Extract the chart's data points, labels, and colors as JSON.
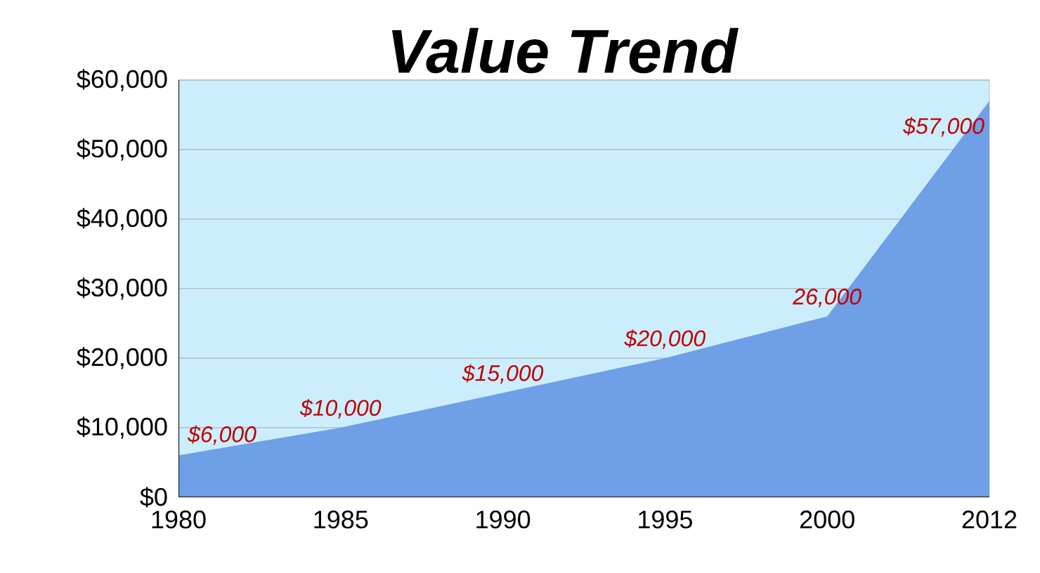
{
  "chart_data": {
    "type": "area",
    "title": "Value Trend",
    "categories": [
      "1980",
      "1985",
      "1990",
      "1995",
      "2000",
      "2012"
    ],
    "values": [
      6000,
      10000,
      15000,
      20000,
      26000,
      57000
    ],
    "value_labels": [
      "$6,000",
      "$10,000",
      "$15,000",
      "$20,000",
      "26,000",
      "$57,000"
    ],
    "color": "#6f9fe6",
    "ylim": [
      0,
      60000
    ],
    "yticks": [
      {
        "value": 0,
        "label": "$0"
      },
      {
        "value": 10000,
        "label": "$10,000"
      },
      {
        "value": 20000,
        "label": "$20,000"
      },
      {
        "value": 30000,
        "label": "$30,000"
      },
      {
        "value": 40000,
        "label": "$40,000"
      },
      {
        "value": 50000,
        "label": "$50,000"
      },
      {
        "value": 60000,
        "label": "$60,000"
      }
    ],
    "grid": "y"
  }
}
